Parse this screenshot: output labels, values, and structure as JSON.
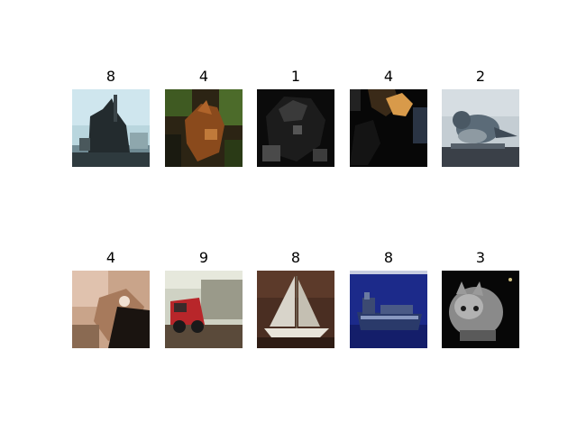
{
  "figure": {
    "images": [
      {
        "label": "8",
        "subject": "ship"
      },
      {
        "label": "4",
        "subject": "deer"
      },
      {
        "label": "1",
        "subject": "dark object"
      },
      {
        "label": "4",
        "subject": "deer"
      },
      {
        "label": "2",
        "subject": "bird"
      },
      {
        "label": "4",
        "subject": "deer"
      },
      {
        "label": "9",
        "subject": "truck"
      },
      {
        "label": "8",
        "subject": "sailboat"
      },
      {
        "label": "8",
        "subject": "ship"
      },
      {
        "label": "3",
        "subject": "cat"
      }
    ]
  }
}
